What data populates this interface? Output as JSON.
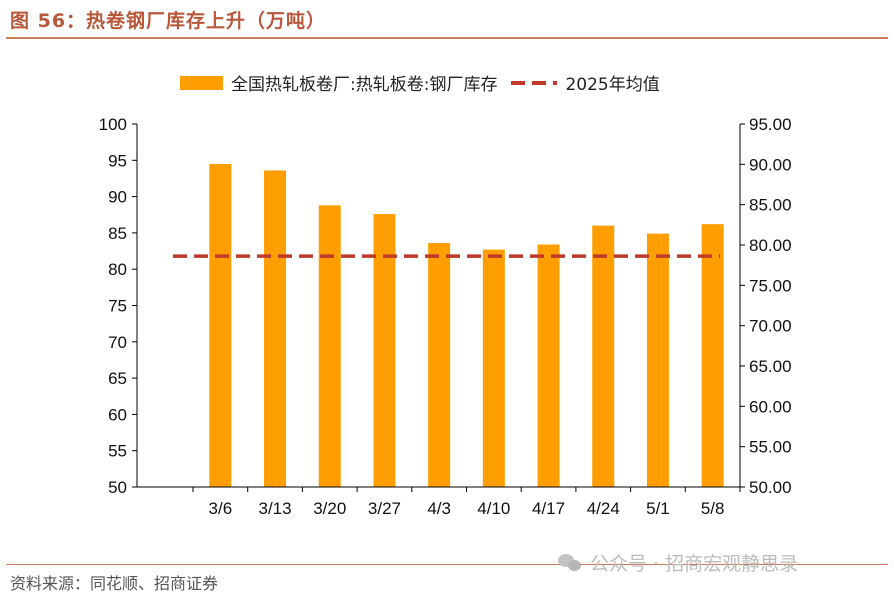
{
  "header": {
    "title": "图 56：热卷钢厂库存上升（万吨）"
  },
  "footer": {
    "source": "资料来源：同花顺、招商证券",
    "watermark": "公众号 · 招商宏观静思录"
  },
  "colors": {
    "bar": "#ff9e00",
    "line": "#c0392b",
    "axis": "#000000"
  },
  "chart_data": {
    "type": "bar",
    "categories": [
      "3/6",
      "3/13",
      "3/20",
      "3/27",
      "4/3",
      "4/10",
      "4/17",
      "4/24",
      "5/1",
      "5/8"
    ],
    "series": [
      {
        "name": "全国热轧板卷厂:热轧板卷:钢厂库存",
        "type": "bar",
        "axis": "left",
        "values": [
          94.5,
          93.6,
          88.8,
          87.6,
          83.6,
          82.7,
          83.4,
          86.0,
          84.9,
          86.2
        ]
      },
      {
        "name": "2025年均值",
        "type": "line",
        "style": "dashed",
        "axis": "left",
        "values": [
          81.8,
          81.8,
          81.8,
          81.8,
          81.8,
          81.8,
          81.8,
          81.8,
          81.8,
          81.8
        ]
      }
    ],
    "y_left": {
      "ylim": [
        50,
        100
      ],
      "ticks": [
        "50",
        "55",
        "60",
        "65",
        "70",
        "75",
        "80",
        "85",
        "90",
        "95",
        "100"
      ]
    },
    "y_right": {
      "ylim": [
        50,
        95
      ],
      "ticks": [
        "50.00",
        "55.00",
        "60.00",
        "65.00",
        "70.00",
        "75.00",
        "80.00",
        "85.00",
        "90.00",
        "95.00"
      ]
    },
    "grid": false,
    "legend": "top"
  }
}
